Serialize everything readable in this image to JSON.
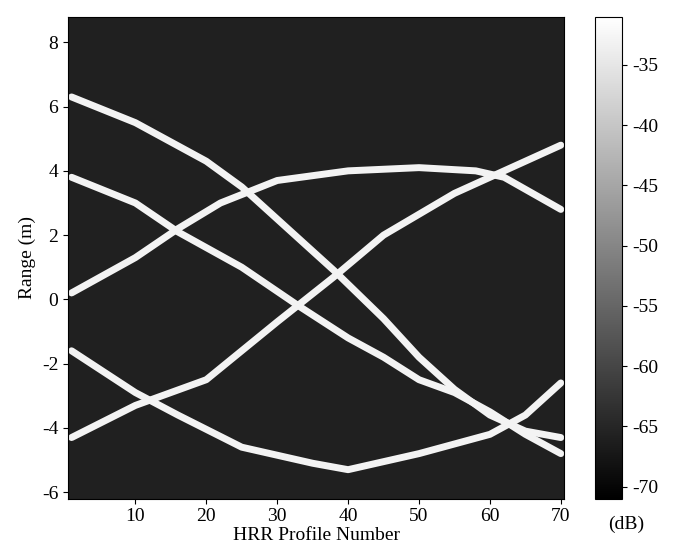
{
  "chart_data": {
    "type": "heatmap",
    "xlabel": "HRR Profile Number",
    "ylabel": "Range (m)",
    "xlim": [
      0.5,
      70.5
    ],
    "ylim": [
      -6.2,
      8.8
    ],
    "xticks": [
      10,
      20,
      30,
      40,
      50,
      60,
      70
    ],
    "yticks": [
      -6,
      -4,
      -2,
      0,
      2,
      4,
      6,
      8
    ],
    "color": "gray",
    "background": -66,
    "track_level": -33,
    "series": [
      {
        "x": [
          1,
          10,
          20,
          25,
          30,
          38,
          45,
          50,
          55,
          60,
          65,
          70
        ],
        "values": [
          6.3,
          5.5,
          4.3,
          3.5,
          2.5,
          0.9,
          -0.6,
          -1.8,
          -2.8,
          -3.6,
          -4.1,
          -4.3
        ]
      },
      {
        "x": [
          1,
          10,
          16,
          25,
          33,
          40,
          45,
          50,
          55,
          60,
          65,
          70
        ],
        "values": [
          3.8,
          3.0,
          2.1,
          1.0,
          -0.2,
          -1.2,
          -1.8,
          -2.5,
          -2.9,
          -3.5,
          -4.2,
          -4.8
        ]
      },
      {
        "x": [
          1,
          10,
          16,
          22,
          30,
          40,
          50,
          58,
          62,
          70
        ],
        "values": [
          0.2,
          1.3,
          2.2,
          3.0,
          3.7,
          4.0,
          4.1,
          4.0,
          3.8,
          2.8
        ]
      },
      {
        "x": [
          1,
          10,
          16,
          25,
          35,
          40,
          50,
          60,
          65,
          70
        ],
        "values": [
          -1.6,
          -2.9,
          -3.6,
          -4.6,
          -5.1,
          -5.3,
          -4.8,
          -4.2,
          -3.6,
          -2.6
        ]
      },
      {
        "x": [
          1,
          10,
          20,
          30,
          38,
          45,
          55,
          62,
          70
        ],
        "values": [
          -4.3,
          -3.3,
          -2.5,
          -0.7,
          0.7,
          2.0,
          3.3,
          4.0,
          4.8
        ]
      }
    ],
    "colorbar": {
      "range": [
        -71,
        -31
      ],
      "ticks": [
        -35,
        -40,
        -45,
        -50,
        -55,
        -60,
        -65,
        -70
      ],
      "label": "(dB)"
    }
  }
}
